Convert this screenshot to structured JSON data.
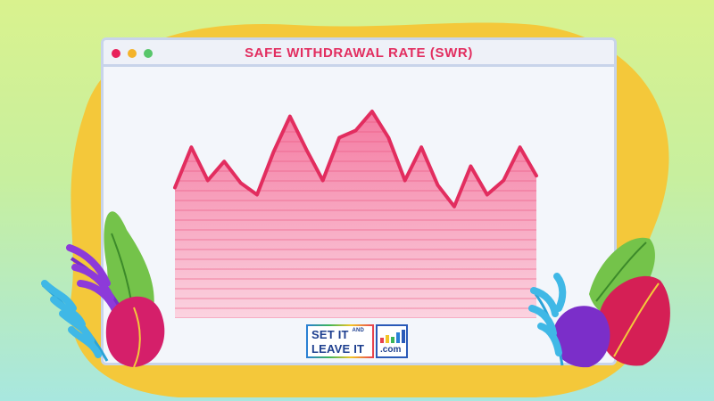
{
  "window": {
    "title": "SAFE WITHDRAWAL RATE (SWR)",
    "controls": [
      "close",
      "minimize",
      "maximize"
    ]
  },
  "logo": {
    "line1": "SET IT",
    "line1_small": "AND",
    "line2": "LEAVE IT",
    "suffix": ".com"
  },
  "chart_data": {
    "type": "area",
    "title": "SAFE WITHDRAWAL RATE (SWR)",
    "xlabel": "",
    "ylabel": "",
    "grid": true,
    "series": [
      {
        "values": [
          55,
          72,
          58,
          66,
          57,
          52,
          70,
          85,
          71,
          58,
          76,
          79,
          93,
          76,
          58,
          72,
          56,
          47,
          64,
          52,
          58,
          72,
          60
        ]
      }
    ],
    "colors": {
      "line": "#e22d5f",
      "fill_top": "#f47aa1",
      "fill_bottom": "#fbd3e0"
    }
  }
}
